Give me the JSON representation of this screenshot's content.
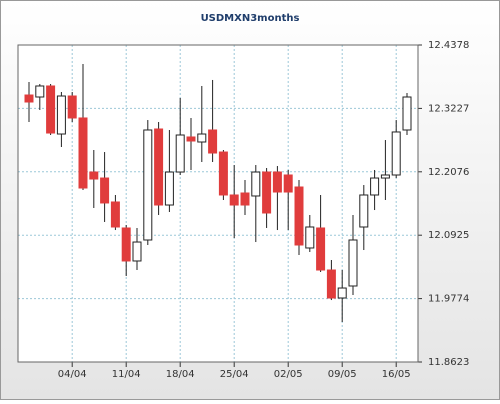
{
  "chart_data": {
    "type": "candlestick",
    "title": "USDMXN3months",
    "categories": [
      null,
      null,
      null,
      null,
      "04/04",
      null,
      null,
      null,
      null,
      "11/04",
      null,
      null,
      null,
      null,
      "18/04",
      null,
      null,
      null,
      null,
      "25/04",
      null,
      null,
      null,
      null,
      "02/05",
      null,
      null,
      null,
      null,
      "09/05",
      null,
      null,
      null,
      null,
      "16/05",
      null
    ],
    "open": [
      12.347,
      12.3434,
      12.3634,
      12.2762,
      12.3452,
      12.3053,
      12.2072,
      12.1963,
      12.1528,
      12.1056,
      12.0457,
      12.0838,
      12.2853,
      12.1473,
      12.2072,
      12.2708,
      12.2617,
      12.2835,
      12.2435,
      12.1655,
      12.1691,
      12.1637,
      12.2072,
      12.2072,
      12.2018,
      12.18,
      12.0693,
      12.1056,
      12.0293,
      11.9785,
      12.0003,
      12.1074,
      12.1655,
      12.1963,
      12.2018,
      12.2835
    ],
    "high": [
      12.3706,
      12.367,
      12.367,
      12.3525,
      12.3525,
      12.4033,
      12.2472,
      12.2435,
      12.1655,
      12.111,
      12.1056,
      12.3016,
      12.298,
      12.2835,
      12.3416,
      12.3053,
      12.3634,
      12.3743,
      12.2472,
      12.2199,
      12.1927,
      12.2199,
      12.2145,
      12.2181,
      12.2109,
      12.1927,
      12.1292,
      12.1655,
      12.0475,
      12.0293,
      12.1292,
      12.1836,
      12.2109,
      12.2653,
      12.3016,
      12.3507
    ],
    "low": [
      12.298,
      12.3198,
      12.2744,
      12.2526,
      12.298,
      12.1746,
      12.1419,
      12.1165,
      12.1019,
      12.0184,
      12.0293,
      12.0747,
      12.1292,
      12.1346,
      12.2018,
      12.2109,
      12.2254,
      12.2254,
      12.1564,
      12.0874,
      12.1292,
      12.0801,
      12.1056,
      12.1019,
      12.1019,
      12.0565,
      12.062,
      12.0257,
      11.9748,
      11.9349,
      11.9839,
      12.0656,
      12.1382,
      12.1564,
      12.1963,
      12.2744
    ],
    "close": [
      12.3343,
      12.3634,
      12.278,
      12.3452,
      12.3053,
      12.1782,
      12.1945,
      12.151,
      12.1074,
      12.0457,
      12.0801,
      12.2835,
      12.1473,
      12.2072,
      12.2744,
      12.2635,
      12.2762,
      12.2417,
      12.1655,
      12.1473,
      12.1473,
      12.2072,
      12.1328,
      12.1709,
      12.1709,
      12.0747,
      12.1074,
      12.0293,
      11.9785,
      11.9966,
      12.0838,
      12.1655,
      12.1963,
      12.2018,
      12.2799,
      12.3434
    ],
    "up_color": "#ffffff",
    "down_color": "#e03c3c",
    "ylim": [
      11.8623,
      12.4378
    ],
    "yticks": [
      11.8623,
      11.9774,
      12.0925,
      12.2076,
      12.3227,
      12.4378
    ],
    "grid": true
  }
}
